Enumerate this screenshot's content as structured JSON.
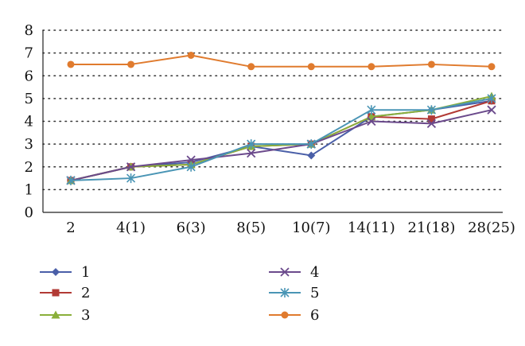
{
  "chart_data": {
    "type": "line",
    "categories": [
      "2",
      "4(1)",
      "6(3)",
      "8(5)",
      "10(7)",
      "14(11)",
      "21(18)",
      "28(25)"
    ],
    "ylim": [
      0,
      8
    ],
    "yticks": [
      "0",
      "1",
      "2",
      "3",
      "4",
      "5",
      "6",
      "7",
      "8"
    ],
    "grid": "horizontal-dotted",
    "legend_position": "bottom",
    "series": [
      {
        "name": "1",
        "color": "#4a5fa8",
        "marker": "diamond",
        "values": [
          1.4,
          2.0,
          2.2,
          2.9,
          2.5,
          4.2,
          4.5,
          4.9
        ]
      },
      {
        "name": "2",
        "color": "#b23a35",
        "marker": "square",
        "values": [
          1.4,
          2.0,
          2.1,
          2.9,
          3.0,
          4.2,
          4.1,
          4.9
        ]
      },
      {
        "name": "3",
        "color": "#8aaf3a",
        "marker": "triangle",
        "values": [
          1.4,
          2.0,
          2.1,
          2.9,
          3.0,
          4.2,
          4.5,
          5.1
        ]
      },
      {
        "name": "4",
        "color": "#6b4a8c",
        "marker": "x",
        "values": [
          1.4,
          2.0,
          2.3,
          2.6,
          3.0,
          4.0,
          3.9,
          4.5
        ]
      },
      {
        "name": "5",
        "color": "#4a95b5",
        "marker": "star",
        "values": [
          1.4,
          1.5,
          2.0,
          3.0,
          3.0,
          4.5,
          4.5,
          5.0
        ]
      },
      {
        "name": "6",
        "color": "#e07b2e",
        "marker": "circle",
        "values": [
          6.5,
          6.5,
          6.9,
          6.4,
          6.4,
          6.4,
          6.5,
          6.4
        ]
      }
    ]
  }
}
